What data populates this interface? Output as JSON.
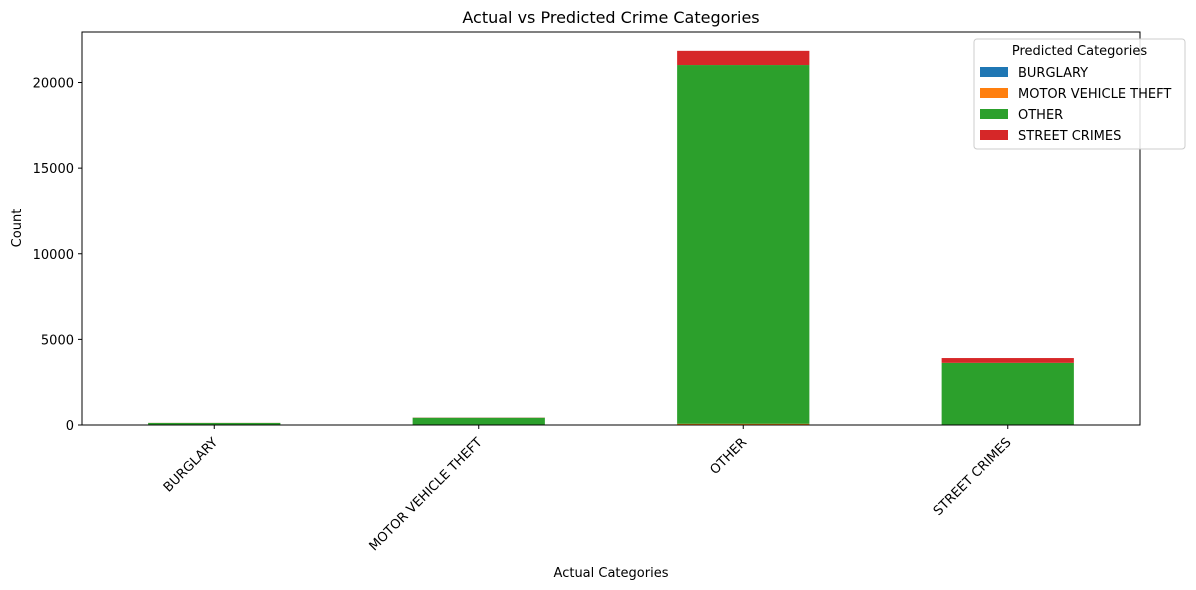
{
  "chart_data": {
    "type": "bar",
    "stacked": true,
    "title": "Actual vs Predicted Crime Categories",
    "xlabel": "Actual Categories",
    "ylabel": "Count",
    "categories": [
      "BURGLARY",
      "MOTOR VEHICLE THEFT",
      "OTHER",
      "STREET CRIMES"
    ],
    "ylim": [
      0,
      22950
    ],
    "yticks": [
      0,
      5000,
      10000,
      15000,
      20000
    ],
    "grid": false,
    "legend": {
      "title": "Predicted Categories",
      "placement": "top-right"
    },
    "series": [
      {
        "name": "BURGLARY",
        "color": "#1f77b4",
        "values": [
          0,
          0,
          10,
          5
        ]
      },
      {
        "name": "MOTOR VEHICLE THEFT",
        "color": "#ff7f0e",
        "values": [
          0,
          5,
          60,
          5
        ]
      },
      {
        "name": "OTHER",
        "color": "#2ca02c",
        "values": [
          120,
          420,
          20950,
          3620
        ]
      },
      {
        "name": "STREET CRIMES",
        "color": "#d62728",
        "values": [
          5,
          10,
          830,
          280
        ]
      }
    ]
  }
}
